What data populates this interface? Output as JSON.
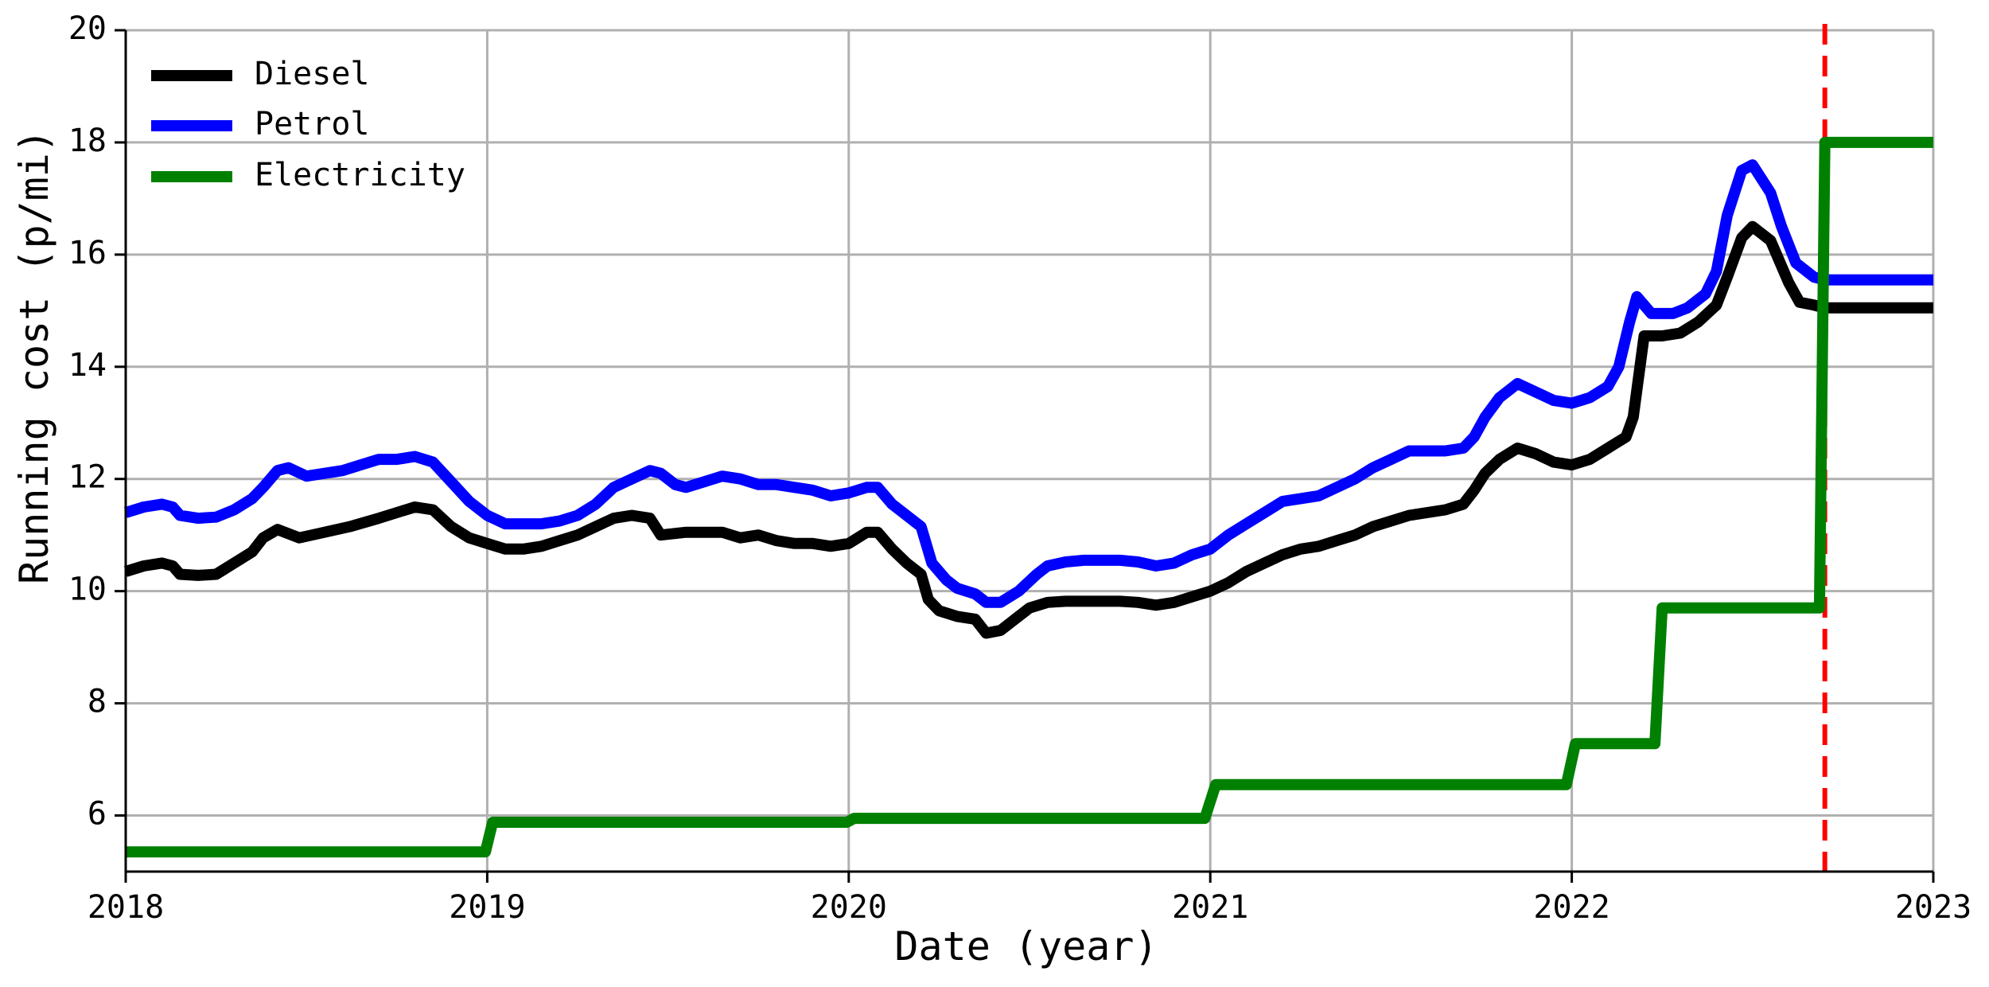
{
  "chart_data": {
    "type": "line",
    "xlabel": "Date (year)",
    "ylabel": "Running cost (p/mi)",
    "xlim": [
      2018.0,
      2023.0
    ],
    "ylim": [
      5,
      20
    ],
    "xticks": [
      2018,
      2019,
      2020,
      2021,
      2022,
      2023
    ],
    "xtick_labels": [
      "2018",
      "2019",
      "2020",
      "2021",
      "2022",
      "2023"
    ],
    "yticks": [
      6,
      8,
      10,
      12,
      14,
      16,
      18,
      20
    ],
    "ytick_labels": [
      "6",
      "8",
      "10",
      "12",
      "14",
      "16",
      "18",
      "20"
    ],
    "grid": true,
    "legend_position": "top-left",
    "vertical_marker": {
      "x": 2022.7,
      "color": "#ff0000",
      "style": "dashed"
    },
    "series": [
      {
        "name": "Diesel",
        "color": "#000000",
        "points": [
          [
            2018.0,
            10.35
          ],
          [
            2018.05,
            10.45
          ],
          [
            2018.1,
            10.5
          ],
          [
            2018.13,
            10.45
          ],
          [
            2018.15,
            10.3
          ],
          [
            2018.2,
            10.28
          ],
          [
            2018.25,
            10.3
          ],
          [
            2018.3,
            10.5
          ],
          [
            2018.35,
            10.7
          ],
          [
            2018.38,
            10.95
          ],
          [
            2018.42,
            11.1
          ],
          [
            2018.48,
            10.95
          ],
          [
            2018.55,
            11.05
          ],
          [
            2018.62,
            11.15
          ],
          [
            2018.7,
            11.3
          ],
          [
            2018.75,
            11.4
          ],
          [
            2018.8,
            11.5
          ],
          [
            2018.85,
            11.45
          ],
          [
            2018.9,
            11.15
          ],
          [
            2018.95,
            10.95
          ],
          [
            2019.0,
            10.85
          ],
          [
            2019.05,
            10.75
          ],
          [
            2019.1,
            10.75
          ],
          [
            2019.15,
            10.8
          ],
          [
            2019.2,
            10.9
          ],
          [
            2019.25,
            11.0
          ],
          [
            2019.3,
            11.15
          ],
          [
            2019.35,
            11.3
          ],
          [
            2019.4,
            11.35
          ],
          [
            2019.45,
            11.3
          ],
          [
            2019.48,
            11.0
          ],
          [
            2019.55,
            11.05
          ],
          [
            2019.6,
            11.05
          ],
          [
            2019.65,
            11.05
          ],
          [
            2019.7,
            10.95
          ],
          [
            2019.75,
            11.0
          ],
          [
            2019.8,
            10.9
          ],
          [
            2019.85,
            10.85
          ],
          [
            2019.9,
            10.85
          ],
          [
            2019.95,
            10.8
          ],
          [
            2020.0,
            10.85
          ],
          [
            2020.05,
            11.05
          ],
          [
            2020.08,
            11.05
          ],
          [
            2020.12,
            10.75
          ],
          [
            2020.16,
            10.5
          ],
          [
            2020.2,
            10.3
          ],
          [
            2020.22,
            9.85
          ],
          [
            2020.25,
            9.65
          ],
          [
            2020.3,
            9.55
          ],
          [
            2020.35,
            9.5
          ],
          [
            2020.38,
            9.25
          ],
          [
            2020.42,
            9.3
          ],
          [
            2020.45,
            9.45
          ],
          [
            2020.5,
            9.7
          ],
          [
            2020.55,
            9.8
          ],
          [
            2020.6,
            9.82
          ],
          [
            2020.65,
            9.82
          ],
          [
            2020.7,
            9.82
          ],
          [
            2020.75,
            9.82
          ],
          [
            2020.8,
            9.8
          ],
          [
            2020.85,
            9.75
          ],
          [
            2020.9,
            9.8
          ],
          [
            2020.95,
            9.9
          ],
          [
            2021.0,
            10.0
          ],
          [
            2021.05,
            10.15
          ],
          [
            2021.1,
            10.35
          ],
          [
            2021.15,
            10.5
          ],
          [
            2021.2,
            10.65
          ],
          [
            2021.25,
            10.75
          ],
          [
            2021.3,
            10.8
          ],
          [
            2021.35,
            10.9
          ],
          [
            2021.4,
            11.0
          ],
          [
            2021.45,
            11.15
          ],
          [
            2021.5,
            11.25
          ],
          [
            2021.55,
            11.35
          ],
          [
            2021.6,
            11.4
          ],
          [
            2021.65,
            11.45
          ],
          [
            2021.7,
            11.55
          ],
          [
            2021.73,
            11.8
          ],
          [
            2021.76,
            12.1
          ],
          [
            2021.8,
            12.35
          ],
          [
            2021.85,
            12.55
          ],
          [
            2021.9,
            12.45
          ],
          [
            2021.95,
            12.3
          ],
          [
            2022.0,
            12.25
          ],
          [
            2022.05,
            12.35
          ],
          [
            2022.1,
            12.55
          ],
          [
            2022.15,
            12.75
          ],
          [
            2022.17,
            13.1
          ],
          [
            2022.2,
            14.55
          ],
          [
            2022.25,
            14.55
          ],
          [
            2022.3,
            14.6
          ],
          [
            2022.35,
            14.8
          ],
          [
            2022.4,
            15.1
          ],
          [
            2022.43,
            15.6
          ],
          [
            2022.47,
            16.3
          ],
          [
            2022.5,
            16.5
          ],
          [
            2022.55,
            16.25
          ],
          [
            2022.6,
            15.5
          ],
          [
            2022.63,
            15.15
          ],
          [
            2022.67,
            15.1
          ],
          [
            2022.7,
            15.05
          ],
          [
            2023.0,
            15.05
          ]
        ]
      },
      {
        "name": "Petrol",
        "color": "#0000ff",
        "points": [
          [
            2018.0,
            11.4
          ],
          [
            2018.05,
            11.5
          ],
          [
            2018.1,
            11.55
          ],
          [
            2018.13,
            11.5
          ],
          [
            2018.15,
            11.35
          ],
          [
            2018.2,
            11.3
          ],
          [
            2018.25,
            11.32
          ],
          [
            2018.3,
            11.45
          ],
          [
            2018.35,
            11.65
          ],
          [
            2018.38,
            11.85
          ],
          [
            2018.42,
            12.15
          ],
          [
            2018.45,
            12.2
          ],
          [
            2018.5,
            12.05
          ],
          [
            2018.55,
            12.1
          ],
          [
            2018.6,
            12.15
          ],
          [
            2018.65,
            12.25
          ],
          [
            2018.7,
            12.35
          ],
          [
            2018.75,
            12.35
          ],
          [
            2018.8,
            12.4
          ],
          [
            2018.85,
            12.3
          ],
          [
            2018.9,
            11.95
          ],
          [
            2018.95,
            11.6
          ],
          [
            2019.0,
            11.35
          ],
          [
            2019.05,
            11.2
          ],
          [
            2019.1,
            11.2
          ],
          [
            2019.15,
            11.2
          ],
          [
            2019.2,
            11.25
          ],
          [
            2019.25,
            11.35
          ],
          [
            2019.3,
            11.55
          ],
          [
            2019.35,
            11.85
          ],
          [
            2019.4,
            12.0
          ],
          [
            2019.45,
            12.15
          ],
          [
            2019.48,
            12.1
          ],
          [
            2019.52,
            11.9
          ],
          [
            2019.55,
            11.85
          ],
          [
            2019.6,
            11.95
          ],
          [
            2019.65,
            12.05
          ],
          [
            2019.7,
            12.0
          ],
          [
            2019.75,
            11.9
          ],
          [
            2019.8,
            11.9
          ],
          [
            2019.85,
            11.85
          ],
          [
            2019.9,
            11.8
          ],
          [
            2019.95,
            11.7
          ],
          [
            2020.0,
            11.75
          ],
          [
            2020.05,
            11.85
          ],
          [
            2020.08,
            11.85
          ],
          [
            2020.12,
            11.55
          ],
          [
            2020.16,
            11.35
          ],
          [
            2020.2,
            11.15
          ],
          [
            2020.23,
            10.5
          ],
          [
            2020.27,
            10.2
          ],
          [
            2020.3,
            10.05
          ],
          [
            2020.35,
            9.95
          ],
          [
            2020.38,
            9.8
          ],
          [
            2020.42,
            9.8
          ],
          [
            2020.47,
            10.0
          ],
          [
            2020.52,
            10.3
          ],
          [
            2020.55,
            10.45
          ],
          [
            2020.6,
            10.52
          ],
          [
            2020.65,
            10.55
          ],
          [
            2020.7,
            10.55
          ],
          [
            2020.75,
            10.55
          ],
          [
            2020.8,
            10.52
          ],
          [
            2020.85,
            10.45
          ],
          [
            2020.9,
            10.5
          ],
          [
            2020.95,
            10.65
          ],
          [
            2021.0,
            10.75
          ],
          [
            2021.05,
            11.0
          ],
          [
            2021.1,
            11.2
          ],
          [
            2021.15,
            11.4
          ],
          [
            2021.2,
            11.6
          ],
          [
            2021.25,
            11.65
          ],
          [
            2021.3,
            11.7
          ],
          [
            2021.35,
            11.85
          ],
          [
            2021.4,
            12.0
          ],
          [
            2021.45,
            12.2
          ],
          [
            2021.5,
            12.35
          ],
          [
            2021.55,
            12.5
          ],
          [
            2021.6,
            12.5
          ],
          [
            2021.65,
            12.5
          ],
          [
            2021.7,
            12.55
          ],
          [
            2021.73,
            12.75
          ],
          [
            2021.76,
            13.1
          ],
          [
            2021.8,
            13.45
          ],
          [
            2021.85,
            13.7
          ],
          [
            2021.9,
            13.55
          ],
          [
            2021.95,
            13.4
          ],
          [
            2022.0,
            13.35
          ],
          [
            2022.05,
            13.45
          ],
          [
            2022.1,
            13.65
          ],
          [
            2022.13,
            14.0
          ],
          [
            2022.16,
            14.8
          ],
          [
            2022.18,
            15.25
          ],
          [
            2022.22,
            14.95
          ],
          [
            2022.28,
            14.95
          ],
          [
            2022.32,
            15.05
          ],
          [
            2022.37,
            15.3
          ],
          [
            2022.4,
            15.7
          ],
          [
            2022.43,
            16.7
          ],
          [
            2022.47,
            17.5
          ],
          [
            2022.5,
            17.6
          ],
          [
            2022.55,
            17.1
          ],
          [
            2022.58,
            16.5
          ],
          [
            2022.62,
            15.85
          ],
          [
            2022.67,
            15.6
          ],
          [
            2022.7,
            15.55
          ],
          [
            2023.0,
            15.55
          ]
        ]
      },
      {
        "name": "Electricity",
        "color": "#008000",
        "points": [
          [
            2018.0,
            5.35
          ],
          [
            2018.995,
            5.35
          ],
          [
            2019.015,
            5.88
          ],
          [
            2019.995,
            5.88
          ],
          [
            2020.015,
            5.95
          ],
          [
            2020.985,
            5.95
          ],
          [
            2021.015,
            6.55
          ],
          [
            2021.985,
            6.55
          ],
          [
            2022.01,
            7.28
          ],
          [
            2022.23,
            7.28
          ],
          [
            2022.25,
            9.7
          ],
          [
            2022.685,
            9.7
          ],
          [
            2022.7,
            18.0
          ],
          [
            2023.0,
            18.0
          ]
        ]
      }
    ]
  }
}
